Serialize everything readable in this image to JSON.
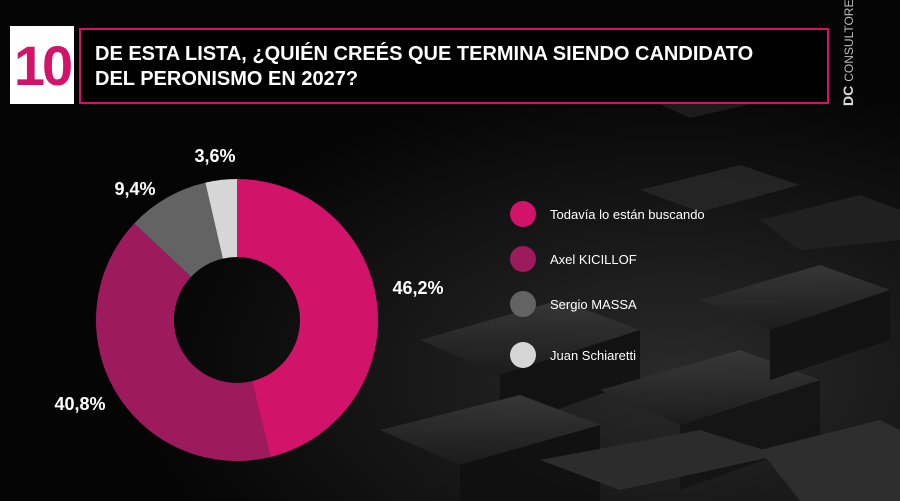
{
  "header": {
    "number": "10",
    "title_line1": "DE ESTA LISTA, ¿QUIÉN CREÉS QUE TERMINA SIENDO CANDIDATO",
    "title_line2": "DEL PERONISMO EN 2027?"
  },
  "brand": {
    "logo_text": "DC",
    "sub_text": "CONSULTORES"
  },
  "chart_data": {
    "type": "pie",
    "donut": true,
    "categories": [
      "Todavía lo están buscando",
      "Axel KICILLOF",
      "Sergio MASSA",
      "Juan Schiaretti"
    ],
    "values": [
      46.2,
      40.8,
      9.4,
      3.6
    ],
    "value_labels": [
      "46,2%",
      "40,8%",
      "9,4%",
      "3,6%"
    ],
    "colors": [
      "#d1136a",
      "#9d1a5d",
      "#636363",
      "#d6d6d6"
    ],
    "legend_position": "right"
  },
  "colors": {
    "accent": "#d1136a",
    "background": "#000000"
  }
}
